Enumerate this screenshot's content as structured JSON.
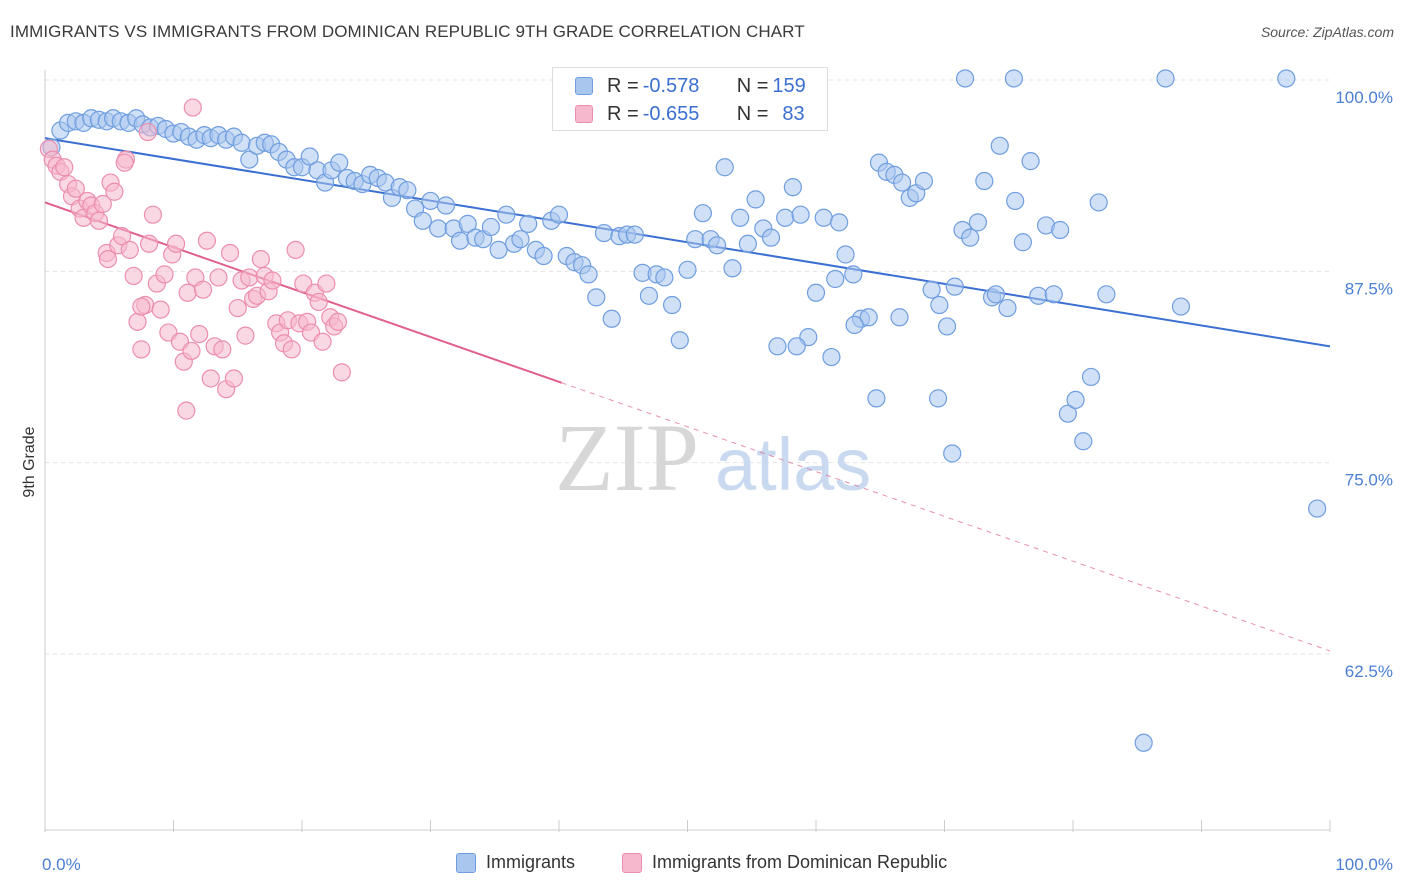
{
  "title": "IMMIGRANTS VS IMMIGRANTS FROM DOMINICAN REPUBLIC 9TH GRADE CORRELATION CHART",
  "source": "Source: ZipAtlas.com",
  "watermark": {
    "zip": "ZIP",
    "atlas": "atlas"
  },
  "colors": {
    "blue": "#3b6fd1",
    "blue_fill": "#a9c6ef",
    "blue_stroke": "#6f9ee0",
    "pink": "#e0608f",
    "pink_fill": "#f6b8cc",
    "pink_stroke": "#ec8eae",
    "grid": "#e3e3e3",
    "tick_label": "#4a7fd4"
  },
  "legend": {
    "rows": [
      {
        "r_label": "R = ",
        "r_value": "-0.578",
        "n_label": "N = ",
        "n_value": "159"
      },
      {
        "r_label": "R = ",
        "r_value": "-0.655",
        "n_label": "N = ",
        "n_value": "83"
      }
    ]
  },
  "bottom_legend": [
    "Immigrants",
    "Immigrants from Dominican Republic"
  ],
  "chart_data": {
    "type": "scatter",
    "title": "IMMIGRANTS VS IMMIGRANTS FROM DOMINICAN REPUBLIC 9TH GRADE CORRELATION CHART",
    "xlabel": "",
    "ylabel": "9th Grade",
    "xlim": [
      0,
      100
    ],
    "ylim": [
      51,
      102
    ],
    "x_tick_labels": [
      "0.0%",
      "100.0%"
    ],
    "y_ticks": [
      62.5,
      75.0,
      87.5,
      100.0
    ],
    "y_tick_labels": [
      "62.5%",
      "75.0%",
      "87.5%",
      "100.0%"
    ],
    "grid": true,
    "legend_position": "top-center",
    "series": [
      {
        "name": "Immigrants",
        "color": "#3b6fd1",
        "r": -0.578,
        "n": 159,
        "trend": {
          "x0": 0,
          "y0": 96.2,
          "x1": 100,
          "y1": 82.6,
          "solid_until": 100
        },
        "points": [
          [
            0.5,
            95.6
          ],
          [
            1.2,
            96.7
          ],
          [
            1.8,
            97.2
          ],
          [
            2.4,
            97.3
          ],
          [
            3.0,
            97.2
          ],
          [
            3.6,
            97.5
          ],
          [
            4.2,
            97.4
          ],
          [
            4.8,
            97.3
          ],
          [
            5.3,
            97.5
          ],
          [
            5.9,
            97.3
          ],
          [
            6.5,
            97.2
          ],
          [
            7.1,
            97.5
          ],
          [
            7.6,
            97.1
          ],
          [
            8.2,
            96.9
          ],
          [
            8.8,
            97.0
          ],
          [
            9.4,
            96.8
          ],
          [
            10.0,
            96.5
          ],
          [
            10.6,
            96.6
          ],
          [
            11.2,
            96.3
          ],
          [
            11.8,
            96.1
          ],
          [
            12.4,
            96.4
          ],
          [
            12.9,
            96.2
          ],
          [
            13.5,
            96.4
          ],
          [
            14.1,
            96.1
          ],
          [
            14.7,
            96.3
          ],
          [
            15.3,
            95.9
          ],
          [
            15.9,
            94.8
          ],
          [
            16.5,
            95.7
          ],
          [
            17.1,
            95.9
          ],
          [
            17.6,
            95.8
          ],
          [
            18.2,
            95.3
          ],
          [
            18.8,
            94.8
          ],
          [
            19.4,
            94.3
          ],
          [
            20.0,
            94.3
          ],
          [
            20.6,
            95.0
          ],
          [
            21.2,
            94.1
          ],
          [
            21.8,
            93.3
          ],
          [
            22.3,
            94.1
          ],
          [
            22.9,
            94.6
          ],
          [
            23.5,
            93.6
          ],
          [
            24.1,
            93.4
          ],
          [
            24.7,
            93.2
          ],
          [
            25.3,
            93.8
          ],
          [
            25.9,
            93.6
          ],
          [
            26.5,
            93.3
          ],
          [
            27.0,
            92.3
          ],
          [
            27.6,
            93.0
          ],
          [
            28.2,
            92.8
          ],
          [
            28.8,
            91.6
          ],
          [
            29.4,
            90.8
          ],
          [
            30.0,
            92.1
          ],
          [
            30.6,
            90.3
          ],
          [
            31.2,
            91.8
          ],
          [
            31.8,
            90.3
          ],
          [
            32.3,
            89.5
          ],
          [
            32.9,
            90.6
          ],
          [
            33.5,
            89.7
          ],
          [
            34.1,
            89.6
          ],
          [
            34.7,
            90.4
          ],
          [
            35.3,
            88.9
          ],
          [
            35.9,
            91.2
          ],
          [
            36.5,
            89.3
          ],
          [
            37.0,
            89.6
          ],
          [
            37.6,
            90.6
          ],
          [
            38.2,
            88.9
          ],
          [
            38.8,
            88.5
          ],
          [
            39.4,
            90.8
          ],
          [
            40.0,
            91.2
          ],
          [
            40.6,
            88.5
          ],
          [
            41.2,
            88.1
          ],
          [
            41.8,
            87.9
          ],
          [
            42.3,
            87.3
          ],
          [
            42.9,
            85.8
          ],
          [
            43.5,
            90.0
          ],
          [
            44.1,
            84.4
          ],
          [
            44.7,
            89.8
          ],
          [
            45.3,
            89.9
          ],
          [
            45.9,
            89.9
          ],
          [
            46.5,
            87.4
          ],
          [
            47.0,
            85.9
          ],
          [
            47.6,
            87.3
          ],
          [
            48.2,
            87.1
          ],
          [
            48.8,
            85.3
          ],
          [
            49.4,
            83.0
          ],
          [
            50.0,
            87.6
          ],
          [
            50.6,
            89.6
          ],
          [
            51.2,
            91.3
          ],
          [
            51.8,
            89.6
          ],
          [
            52.3,
            89.2
          ],
          [
            52.9,
            94.3
          ],
          [
            53.5,
            87.7
          ],
          [
            54.1,
            91.0
          ],
          [
            54.7,
            89.3
          ],
          [
            55.3,
            92.2
          ],
          [
            55.9,
            90.3
          ],
          [
            56.5,
            89.7
          ],
          [
            57.0,
            82.6
          ],
          [
            57.6,
            91.0
          ],
          [
            58.2,
            93.0
          ],
          [
            58.8,
            91.2
          ],
          [
            59.4,
            83.2
          ],
          [
            60.0,
            86.1
          ],
          [
            60.6,
            91.0
          ],
          [
            61.2,
            81.9
          ],
          [
            61.8,
            90.7
          ],
          [
            62.3,
            88.6
          ],
          [
            62.9,
            87.3
          ],
          [
            63.5,
            84.4
          ],
          [
            64.1,
            84.5
          ],
          [
            64.7,
            79.2
          ],
          [
            64.9,
            94.6
          ],
          [
            65.5,
            94.0
          ],
          [
            66.1,
            93.8
          ],
          [
            66.7,
            93.3
          ],
          [
            67.3,
            92.3
          ],
          [
            67.8,
            92.6
          ],
          [
            68.4,
            93.4
          ],
          [
            69.0,
            86.3
          ],
          [
            69.6,
            85.3
          ],
          [
            70.2,
            83.9
          ],
          [
            70.8,
            86.5
          ],
          [
            71.4,
            90.2
          ],
          [
            72.0,
            89.7
          ],
          [
            72.6,
            90.7
          ],
          [
            73.1,
            93.4
          ],
          [
            73.7,
            85.8
          ],
          [
            74.3,
            95.7
          ],
          [
            74.9,
            85.1
          ],
          [
            75.5,
            92.1
          ],
          [
            76.1,
            89.4
          ],
          [
            76.7,
            94.7
          ],
          [
            77.3,
            85.9
          ],
          [
            77.9,
            90.5
          ],
          [
            78.5,
            86.0
          ],
          [
            79.0,
            90.2
          ],
          [
            79.6,
            78.2
          ],
          [
            80.2,
            79.1
          ],
          [
            80.8,
            76.4
          ],
          [
            81.4,
            80.6
          ],
          [
            82.0,
            92.0
          ],
          [
            82.6,
            86.0
          ],
          [
            71.6,
            100.1
          ],
          [
            75.4,
            100.1
          ],
          [
            87.2,
            100.1
          ],
          [
            96.6,
            100.1
          ],
          [
            88.4,
            85.2
          ],
          [
            85.5,
            56.7
          ],
          [
            70.6,
            75.6
          ],
          [
            99.0,
            72.0
          ],
          [
            74.0,
            86.0
          ],
          [
            61.5,
            87.0
          ],
          [
            63.0,
            84.0
          ],
          [
            58.5,
            82.6
          ],
          [
            66.5,
            84.5
          ],
          [
            69.5,
            79.2
          ]
        ]
      },
      {
        "name": "Immigrants from Dominican Republic",
        "color": "#e0608f",
        "r": -0.655,
        "n": 83,
        "trend": {
          "x0": 0,
          "y0": 92.0,
          "x1": 100,
          "y1": 62.7,
          "solid_until": 40.2
        },
        "points": [
          [
            0.3,
            95.5
          ],
          [
            0.6,
            94.8
          ],
          [
            0.9,
            94.4
          ],
          [
            1.2,
            94.0
          ],
          [
            1.5,
            94.3
          ],
          [
            1.8,
            93.2
          ],
          [
            2.1,
            92.4
          ],
          [
            2.4,
            92.9
          ],
          [
            2.7,
            91.6
          ],
          [
            3.0,
            91.0
          ],
          [
            3.3,
            92.1
          ],
          [
            3.6,
            91.8
          ],
          [
            3.9,
            91.3
          ],
          [
            4.2,
            90.8
          ],
          [
            4.5,
            91.9
          ],
          [
            4.8,
            88.7
          ],
          [
            5.1,
            93.3
          ],
          [
            5.4,
            92.7
          ],
          [
            5.7,
            89.2
          ],
          [
            6.0,
            89.8
          ],
          [
            6.3,
            94.8
          ],
          [
            6.6,
            88.9
          ],
          [
            6.9,
            87.2
          ],
          [
            7.2,
            84.2
          ],
          [
            7.5,
            82.4
          ],
          [
            7.8,
            85.3
          ],
          [
            8.1,
            89.3
          ],
          [
            8.4,
            91.2
          ],
          [
            8.7,
            86.7
          ],
          [
            9.0,
            85.0
          ],
          [
            9.3,
            87.3
          ],
          [
            9.6,
            83.5
          ],
          [
            9.9,
            88.6
          ],
          [
            10.2,
            89.3
          ],
          [
            10.5,
            82.9
          ],
          [
            10.8,
            81.6
          ],
          [
            11.1,
            86.1
          ],
          [
            11.4,
            82.3
          ],
          [
            11.7,
            87.1
          ],
          [
            12.0,
            83.4
          ],
          [
            12.3,
            86.3
          ],
          [
            12.6,
            89.5
          ],
          [
            12.9,
            80.5
          ],
          [
            13.2,
            82.6
          ],
          [
            13.5,
            87.1
          ],
          [
            13.8,
            82.4
          ],
          [
            14.1,
            79.8
          ],
          [
            14.4,
            88.7
          ],
          [
            14.7,
            80.5
          ],
          [
            15.0,
            85.1
          ],
          [
            15.3,
            86.9
          ],
          [
            15.6,
            83.3
          ],
          [
            15.9,
            87.1
          ],
          [
            16.2,
            85.7
          ],
          [
            16.5,
            85.9
          ],
          [
            16.8,
            88.3
          ],
          [
            17.1,
            87.2
          ],
          [
            17.4,
            86.2
          ],
          [
            17.7,
            86.9
          ],
          [
            18.0,
            84.1
          ],
          [
            18.3,
            83.5
          ],
          [
            18.6,
            82.8
          ],
          [
            18.9,
            84.3
          ],
          [
            19.2,
            82.4
          ],
          [
            19.5,
            88.9
          ],
          [
            19.8,
            84.1
          ],
          [
            20.1,
            86.7
          ],
          [
            20.4,
            84.2
          ],
          [
            20.7,
            83.5
          ],
          [
            21.0,
            86.1
          ],
          [
            21.3,
            85.5
          ],
          [
            21.6,
            82.9
          ],
          [
            21.9,
            86.7
          ],
          [
            22.2,
            84.5
          ],
          [
            22.5,
            83.9
          ],
          [
            22.8,
            84.2
          ],
          [
            23.1,
            80.9
          ],
          [
            11.5,
            98.2
          ],
          [
            11.0,
            78.4
          ],
          [
            8.0,
            96.6
          ],
          [
            7.5,
            85.2
          ],
          [
            6.2,
            94.6
          ],
          [
            4.9,
            88.3
          ]
        ]
      }
    ]
  }
}
